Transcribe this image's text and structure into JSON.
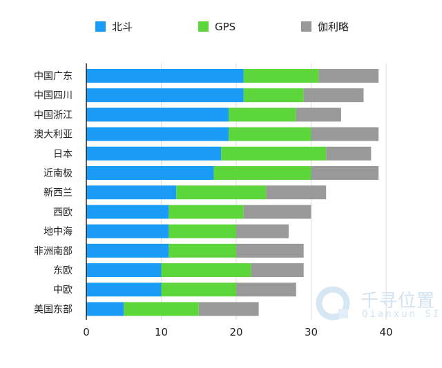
{
  "chart_data": {
    "type": "bar",
    "orientation": "horizontal",
    "stacked": true,
    "categories": [
      "中国广东",
      "中国四川",
      "中国浙江",
      "澳大利亚",
      "日本",
      "近南极",
      "新西兰",
      "西欧",
      "地中海",
      "非洲南部",
      "东欧",
      "中欧",
      "美国东部"
    ],
    "series": [
      {
        "name": "北斗",
        "color": "#1a9bf5",
        "values": [
          21,
          21,
          19,
          19,
          18,
          17,
          12,
          11,
          11,
          11,
          10,
          10,
          5
        ]
      },
      {
        "name": "GPS",
        "color": "#5dd63c",
        "values": [
          10,
          8,
          9,
          11,
          14,
          13,
          12,
          10,
          9,
          9,
          12,
          10,
          10
        ]
      },
      {
        "name": "伽利略",
        "color": "#999999",
        "values": [
          8,
          8,
          6,
          9,
          6,
          9,
          8,
          9,
          7,
          9,
          7,
          8,
          8
        ]
      }
    ],
    "xlim": [
      0,
      40
    ],
    "xticks": [
      "0",
      "10",
      "20",
      "30",
      "40"
    ],
    "grid": true,
    "legend_position": "top"
  },
  "watermark": {
    "brand": "千寻位置",
    "sub": "Qianxun SI"
  }
}
